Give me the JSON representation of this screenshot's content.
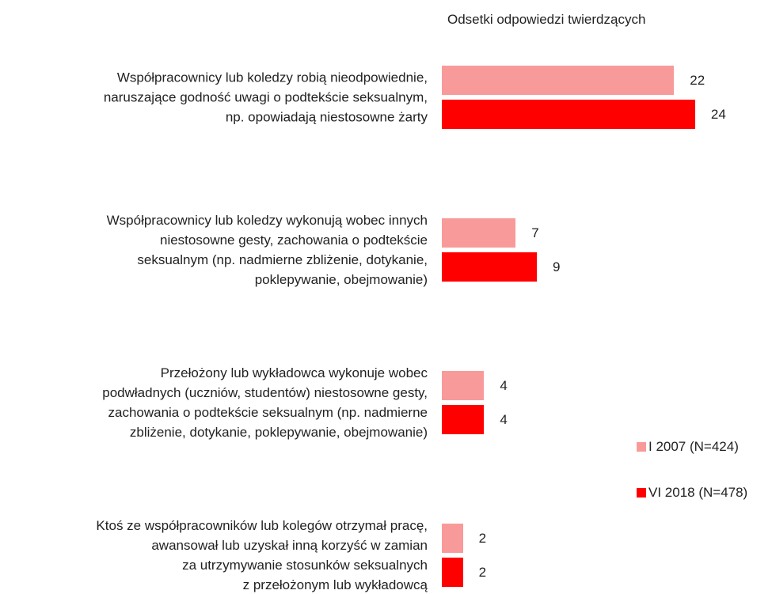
{
  "chart_data": {
    "type": "bar",
    "orientation": "horizontal",
    "title": "Odsetki odpowiedzi twierdzących",
    "categories": [
      "Współpracownicy lub koledzy robią nieodpowiednie,\nnaruszające godność uwagi o podtekście seksualnym,\nnp. opowiadają niestosowne żarty",
      "Współpracownicy lub koledzy wykonują wobec innych\nniestosowne gesty, zachowania o podtekście\nseksualnym (np. nadmierne zbliżenie, dotykanie,\npoklepywanie, obejmowanie)",
      "Przełożony lub wykładowca wykonuje wobec\npodwładnych (uczniów, studentów) niestosowne gesty,\nzachowania o podtekście seksualnym (np. nadmierne\nzbliżenie, dotykanie, poklepywanie, obejmowanie)",
      "Ktoś ze współpracowników lub kolegów otrzymał pracę,\nawansował lub uzyskał inną korzyść w zamian\nza utrzymywanie stosunków seksualnych\nz przełożonym lub wykładowcą"
    ],
    "series": [
      {
        "name": "I 2007 (N=424)",
        "color": "#f99a9a",
        "values": [
          22,
          7,
          4,
          2
        ]
      },
      {
        "name": "VI 2018 (N=478)",
        "color": "#ff0000",
        "values": [
          24,
          9,
          4,
          2
        ]
      }
    ]
  }
}
